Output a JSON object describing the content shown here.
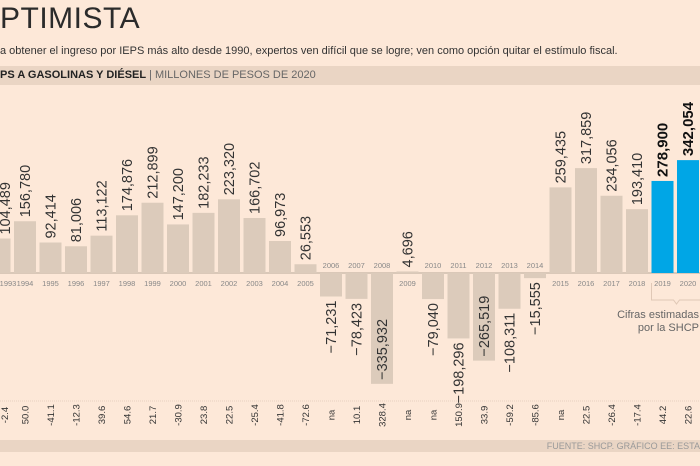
{
  "header": {
    "title": "PTIMISTA",
    "subtitle": "a obtener el ingreso por IEPS más alto desde 1990, expertos ven difícil que se logre; ven como opción quitar el estímulo fiscal.",
    "band_title": "PS A GASOLINAS Y DIÉSEL",
    "band_separator": "|",
    "band_unit": "MILLONES DE PESOS DE 2020"
  },
  "footer": {
    "source": "FUENTE: SHCP. GRÁFICO EE: ESTA"
  },
  "chart_data": {
    "type": "bar",
    "ylabel": "",
    "categories": [
      "1993",
      "1994",
      "1995",
      "1996",
      "1997",
      "1998",
      "1999",
      "2000",
      "2001",
      "2002",
      "2003",
      "2004",
      "2005",
      "2006",
      "2007",
      "2008",
      "2009",
      "2010",
      "2011",
      "2012",
      "2013",
      "2014",
      "2015",
      "2016",
      "2017",
      "2018",
      "2019",
      "2020"
    ],
    "values": [
      104489,
      156780,
      92414,
      81006,
      113122,
      174876,
      212899,
      147200,
      182233,
      223320,
      166702,
      96973,
      26553,
      -71231,
      -78423,
      -335932,
      4696,
      -79040,
      -198296,
      -265519,
      -108311,
      -15555,
      259435,
      317859,
      234056,
      193410,
      278900,
      342054
    ],
    "value_labels": [
      "104,489",
      "156,780",
      "92,414",
      "81,006",
      "113,122",
      "174,876",
      "212,899",
      "147,200",
      "182,233",
      "223,320",
      "166,702",
      "96,973",
      "26,553",
      "−71,231",
      "−78,423",
      "−335,932",
      "4,696",
      "−79,040",
      "−198,296",
      "−265,519",
      "−108,311",
      "−15,555",
      "259,435",
      "317,859",
      "234,056",
      "193,410",
      "278,900",
      "342,054"
    ],
    "estimated": [
      false,
      false,
      false,
      false,
      false,
      false,
      false,
      false,
      false,
      false,
      false,
      false,
      false,
      false,
      false,
      false,
      false,
      false,
      false,
      false,
      false,
      false,
      false,
      false,
      false,
      false,
      true,
      true
    ],
    "pct_change": [
      "-2.4",
      "50.0",
      "-41.1",
      "-12.3",
      "39.6",
      "54.6",
      "21.7",
      "-30.9",
      "23.8",
      "22.5",
      "-25.4",
      "-41.8",
      "-72.6",
      "na",
      "10.1",
      "328.4",
      "na",
      "na",
      "150.9",
      "33.9",
      "-59.2",
      "-85.6",
      "na",
      "22.5",
      "-26.4",
      "-17.4",
      "44.2",
      "22.6"
    ],
    "annotation": {
      "line1": "Cifras estimadas",
      "line2": "por la SHCP"
    },
    "colors": {
      "bar": "#dccbbb",
      "estimated_bar": "#00a6e6",
      "background": "#fde8d8"
    }
  }
}
